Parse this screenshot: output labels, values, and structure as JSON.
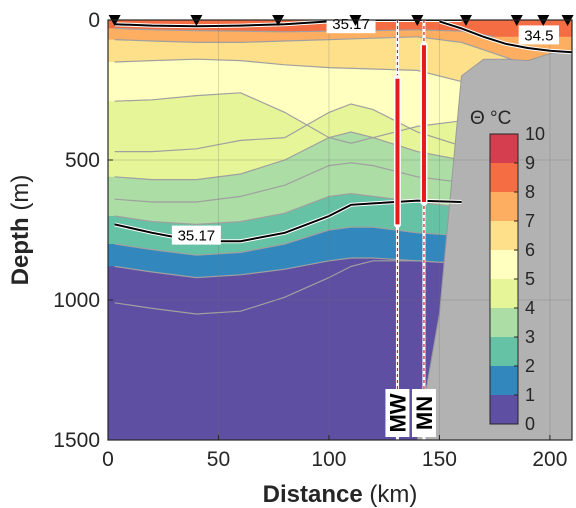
{
  "chart_data": {
    "type": "contour",
    "xlabel_bold": "Distance",
    "xlabel_unit": " (km)",
    "ylabel_bold": "Depth",
    "ylabel_unit": " (m)",
    "xlim": [
      0,
      210
    ],
    "ylim": [
      1500,
      0
    ],
    "xticks": [
      0,
      50,
      100,
      150,
      200
    ],
    "yticks": [
      0,
      500,
      1000,
      1500
    ],
    "grid": true,
    "colorbar": {
      "title": "Θ °C",
      "ticks": [
        "0",
        "1",
        "2",
        "3",
        "4",
        "5",
        "6",
        "7",
        "8",
        "9",
        "10"
      ],
      "colors": [
        "#5e4fa2",
        "#3288bd",
        "#66c2a5",
        "#abdda4",
        "#e6f598",
        "#ffffbf",
        "#fee08b",
        "#fdae61",
        "#f46d43",
        "#d53e4f",
        "#9e0142"
      ],
      "range": [
        0,
        10
      ]
    },
    "isotherms": [
      {
        "theta": 8,
        "x": [
          3,
          20,
          40,
          60,
          80,
          100,
          120,
          140,
          160,
          175
        ],
        "depth": [
          30,
          35,
          38,
          40,
          42,
          40,
          38,
          35,
          40,
          60
        ]
      },
      {
        "theta": 7,
        "x": [
          3,
          20,
          40,
          60,
          80,
          100,
          120,
          140,
          160,
          175,
          190
        ],
        "depth": [
          70,
          75,
          80,
          80,
          75,
          70,
          65,
          60,
          80,
          120,
          160
        ]
      },
      {
        "theta": 6,
        "x": [
          3,
          20,
          40,
          60,
          80,
          100,
          120,
          140,
          160,
          175,
          200
        ],
        "depth": [
          150,
          145,
          140,
          145,
          160,
          170,
          175,
          180,
          220,
          260,
          330
        ]
      },
      {
        "theta": 5,
        "x": [
          3,
          20,
          40,
          60,
          80,
          100,
          110,
          120,
          140,
          160,
          200
        ],
        "depth": [
          290,
          285,
          270,
          260,
          330,
          420,
          440,
          420,
          380,
          360,
          380
        ]
      },
      {
        "theta": 4.5,
        "x": [
          3,
          20,
          40,
          60,
          80,
          100,
          110,
          120,
          140,
          160,
          200
        ],
        "depth": [
          470,
          470,
          460,
          430,
          420,
          330,
          300,
          320,
          400,
          450,
          480
        ]
      },
      {
        "theta": 4,
        "x": [
          3,
          20,
          40,
          60,
          80,
          100,
          110,
          120,
          140,
          160,
          200
        ],
        "depth": [
          560,
          570,
          570,
          550,
          500,
          420,
          400,
          420,
          470,
          500,
          520
        ]
      },
      {
        "theta": 3.5,
        "x": [
          3,
          20,
          40,
          60,
          80,
          100,
          110,
          120,
          140,
          160,
          200
        ],
        "depth": [
          640,
          650,
          650,
          630,
          590,
          520,
          510,
          520,
          560,
          580,
          600
        ]
      },
      {
        "theta": 3,
        "x": [
          3,
          20,
          40,
          60,
          80,
          100,
          110,
          120,
          140,
          160,
          200
        ],
        "depth": [
          700,
          720,
          730,
          720,
          690,
          630,
          620,
          630,
          650,
          670,
          680
        ]
      },
      {
        "theta": 2,
        "x": [
          3,
          20,
          40,
          60,
          80,
          100,
          110,
          120,
          140,
          160,
          200
        ],
        "depth": [
          800,
          820,
          840,
          830,
          800,
          750,
          740,
          740,
          760,
          770,
          780
        ]
      },
      {
        "theta": 1,
        "x": [
          3,
          20,
          40,
          60,
          80,
          100,
          110,
          120,
          140,
          160,
          200
        ],
        "depth": [
          880,
          900,
          920,
          910,
          890,
          860,
          850,
          850,
          860,
          870,
          880
        ]
      },
      {
        "theta": 0,
        "x": [
          3,
          20,
          40,
          60,
          80,
          100,
          110,
          120,
          140,
          160,
          200
        ],
        "depth": [
          1010,
          1030,
          1050,
          1040,
          990,
          920,
          880,
          860,
          860,
          870,
          880
        ]
      }
    ],
    "salinity_contours": [
      {
        "label": "35.17",
        "x": [
          3,
          20,
          40,
          60,
          80,
          100,
          110,
          120,
          140,
          160
        ],
        "depth": [
          730,
          760,
          790,
          790,
          760,
          700,
          660,
          655,
          645,
          650
        ]
      },
      {
        "label": "35.17",
        "x": [
          3,
          20,
          40,
          60,
          80,
          100,
          110,
          120,
          140,
          160
        ],
        "depth": [
          15,
          20,
          22,
          20,
          15,
          5,
          0,
          0,
          0,
          0
        ]
      },
      {
        "label": "34.5",
        "x": [
          150,
          160,
          170,
          180,
          190,
          200,
          210
        ],
        "depth": [
          5,
          30,
          60,
          85,
          100,
          110,
          115
        ]
      }
    ],
    "bathymetry": {
      "x": [
        140,
        150,
        160,
        170,
        180,
        190,
        200,
        210
      ],
      "depth": [
        1500,
        1050,
        200,
        140,
        140,
        145,
        120,
        110
      ]
    },
    "stations_km": [
      3,
      40,
      77,
      112,
      140,
      162,
      185,
      197,
      208
    ],
    "moorings": [
      {
        "name": "MW",
        "x": 131,
        "top_depth": 210,
        "bottom_depth": 730
      },
      {
        "name": "MN",
        "x": 143,
        "top_depth": 90,
        "bottom_depth": 650
      }
    ]
  }
}
